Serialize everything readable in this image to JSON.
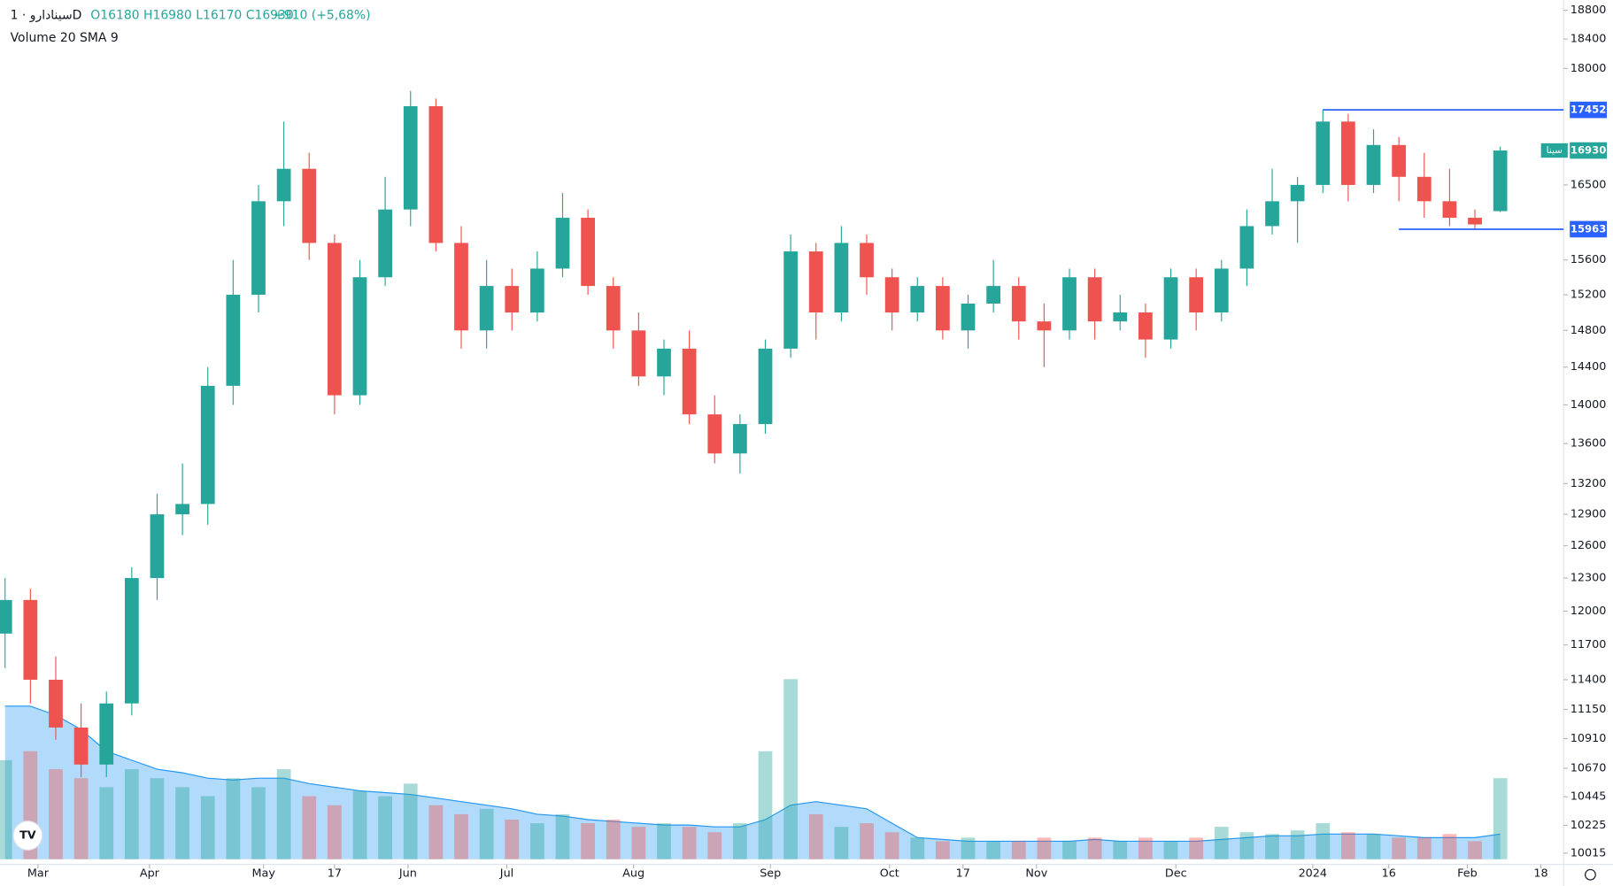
{
  "header": {
    "symbol": "سینادارو · 1D",
    "ohlc": "O16180 H16980 L16170 C16930",
    "change": "+910 (+5,68%)",
    "indicator": "Volume 20 SMA 9"
  },
  "chart_data": {
    "type": "candlestick",
    "log_scale": true,
    "up_color": "#26a69a",
    "down_color": "#ef5350",
    "ylim": [
      10015,
      18800
    ],
    "yticks": [
      10015,
      10225,
      10445,
      10670,
      10910,
      11150,
      11400,
      11700,
      12000,
      12300,
      12600,
      12900,
      13200,
      13600,
      14000,
      14400,
      14800,
      15200,
      15600,
      16500,
      18000,
      18400,
      18800
    ],
    "xlim": [
      -0.2,
      61.5
    ],
    "xticks": [
      {
        "value": 1.3,
        "label": "Mar"
      },
      {
        "value": 5.7,
        "label": "Apr"
      },
      {
        "value": 10.2,
        "label": "May"
      },
      {
        "value": 13,
        "label": "17"
      },
      {
        "value": 15.9,
        "label": "Jun"
      },
      {
        "value": 19.8,
        "label": "Jul"
      },
      {
        "value": 24.8,
        "label": "Aug"
      },
      {
        "value": 30.2,
        "label": "Sep"
      },
      {
        "value": 34.9,
        "label": "Oct"
      },
      {
        "value": 37.8,
        "label": "17"
      },
      {
        "value": 40.7,
        "label": "Nov"
      },
      {
        "value": 46.2,
        "label": "Dec"
      },
      {
        "value": 51.6,
        "label": "2024"
      },
      {
        "value": 54.6,
        "label": "16"
      },
      {
        "value": 57.7,
        "label": "Feb"
      },
      {
        "value": 60.6,
        "label": "18"
      }
    ],
    "open": [
      11800,
      12100,
      11400,
      11000,
      10700,
      11200,
      12300,
      12900,
      13000,
      14200,
      15200,
      16300,
      16700,
      15800,
      14100,
      15400,
      16200,
      17500,
      15800,
      14800,
      15300,
      15000,
      15500,
      16100,
      15300,
      14800,
      14300,
      14600,
      13900,
      13500,
      13800,
      14600,
      15700,
      15000,
      15800,
      15400,
      15000,
      15300,
      14800,
      15100,
      15300,
      14900,
      14800,
      15400,
      14900,
      15000,
      14700,
      15400,
      15000,
      15500,
      16000,
      16300,
      16500,
      17300,
      16500,
      17000,
      16600,
      16300,
      16100,
      16180
    ],
    "high": [
      12300,
      12200,
      11600,
      11200,
      11300,
      12400,
      13100,
      13400,
      14400,
      15600,
      16500,
      17300,
      16900,
      15900,
      15600,
      16600,
      17700,
      17600,
      16000,
      15600,
      15500,
      15700,
      16400,
      16200,
      15400,
      15000,
      14700,
      14800,
      14100,
      13900,
      14700,
      15900,
      15800,
      16000,
      15900,
      15500,
      15400,
      15400,
      15200,
      15600,
      15400,
      15100,
      15500,
      15500,
      15200,
      15100,
      15500,
      15500,
      15600,
      16200,
      16700,
      16600,
      17450,
      17400,
      17200,
      17100,
      16900,
      16700,
      16200,
      16980
    ],
    "low": [
      11500,
      11200,
      10900,
      10600,
      10600,
      11100,
      12100,
      12700,
      12800,
      14000,
      15000,
      16000,
      15600,
      13900,
      14000,
      15300,
      16000,
      15700,
      14600,
      14600,
      14800,
      14900,
      15400,
      15200,
      14600,
      14200,
      14100,
      13800,
      13400,
      13300,
      13700,
      14500,
      14700,
      14900,
      15200,
      14800,
      14900,
      14700,
      14600,
      15000,
      14700,
      14400,
      14700,
      14700,
      14800,
      14500,
      14600,
      14800,
      14900,
      15300,
      15900,
      15800,
      16400,
      16300,
      16400,
      16300,
      16100,
      16000,
      15963,
      16170
    ],
    "close": [
      12100,
      11400,
      11000,
      10700,
      11200,
      12300,
      12900,
      13000,
      14200,
      15200,
      16300,
      16700,
      15800,
      14100,
      15400,
      16200,
      17500,
      15800,
      14800,
      15300,
      15000,
      15500,
      16100,
      15300,
      14800,
      14300,
      14600,
      13900,
      13500,
      13800,
      14600,
      15700,
      15000,
      15800,
      15400,
      15000,
      15300,
      14800,
      15100,
      15300,
      14900,
      14800,
      15400,
      14900,
      15000,
      14700,
      15400,
      15000,
      15500,
      16000,
      16300,
      16500,
      17300,
      16500,
      17000,
      16600,
      16300,
      16100,
      16020,
      16930
    ],
    "volume": [
      55,
      60,
      50,
      45,
      40,
      50,
      45,
      40,
      35,
      45,
      40,
      50,
      35,
      30,
      38,
      35,
      42,
      30,
      25,
      28,
      22,
      20,
      25,
      20,
      22,
      18,
      20,
      18,
      15,
      20,
      60,
      100,
      25,
      18,
      20,
      15,
      12,
      10,
      12,
      10,
      10,
      12,
      10,
      12,
      10,
      12,
      10,
      12,
      18,
      15,
      14,
      16,
      20,
      15,
      14,
      12,
      12,
      14,
      10,
      45
    ],
    "volume_sma": [
      85,
      85,
      80,
      72,
      60,
      55,
      50,
      48,
      45,
      44,
      45,
      45,
      42,
      40,
      38,
      37,
      36,
      34,
      32,
      30,
      28,
      25,
      24,
      22,
      21,
      20,
      19,
      19,
      18,
      18,
      22,
      30,
      32,
      30,
      28,
      20,
      12,
      11,
      10,
      10,
      10,
      10,
      10,
      11,
      10,
      10,
      10,
      10,
      11,
      12,
      13,
      13,
      14,
      14,
      14,
      13,
      12,
      12,
      12,
      14
    ],
    "vlim": [
      0,
      100
    ],
    "price_lines": [
      {
        "value": 17452,
        "from": 52
      },
      {
        "value": 15963,
        "from": 55
      }
    ],
    "last_price": {
      "name": "سینا",
      "value": 16930
    }
  }
}
